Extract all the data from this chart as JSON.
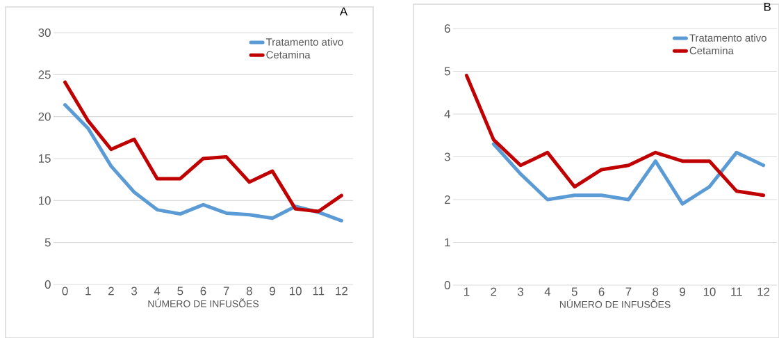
{
  "chart_data": [
    {
      "type": "line",
      "title": "A",
      "xlabel": "NÚMERO DE INFUSÕES",
      "categories": [
        "0",
        "1",
        "2",
        "3",
        "4",
        "5",
        "6",
        "7",
        "8",
        "9",
        "10",
        "11",
        "12"
      ],
      "ylim": [
        0,
        30
      ],
      "yticks": [
        0,
        5,
        10,
        15,
        20,
        25,
        30
      ],
      "grid": "y",
      "legend": "top right",
      "series": [
        {
          "name": "Tratamento ativo",
          "color": "#5b9bd5",
          "values": [
            21.4,
            18.6,
            14.1,
            11.0,
            8.9,
            8.4,
            9.5,
            8.5,
            8.3,
            7.9,
            9.3,
            8.6,
            7.6
          ]
        },
        {
          "name": "Cetamina",
          "color": "#c00000",
          "values": [
            24.1,
            19.5,
            16.1,
            17.3,
            12.6,
            12.6,
            15.0,
            15.2,
            12.2,
            13.5,
            9.0,
            8.7,
            10.6
          ]
        }
      ]
    },
    {
      "type": "line",
      "title": "B",
      "xlabel": "NÚMERO DE INFUSÕES",
      "categories": [
        "1",
        "2",
        "3",
        "4",
        "5",
        "6",
        "7",
        "8",
        "9",
        "10",
        "11",
        "12"
      ],
      "ylim": [
        0,
        6
      ],
      "yticks": [
        0,
        1,
        2,
        3,
        4,
        5,
        6
      ],
      "grid": "y",
      "legend": "top right",
      "series": [
        {
          "name": "Tratamento ativo",
          "color": "#5b9bd5",
          "values": [
            null,
            3.3,
            2.6,
            2.0,
            2.1,
            2.1,
            2.0,
            2.9,
            1.9,
            2.3,
            3.1,
            2.8
          ]
        },
        {
          "name": "Cetamina",
          "color": "#c00000",
          "values": [
            4.9,
            3.4,
            2.8,
            3.1,
            2.3,
            2.7,
            2.8,
            3.1,
            2.9,
            2.9,
            2.2,
            2.1
          ]
        }
      ]
    }
  ]
}
